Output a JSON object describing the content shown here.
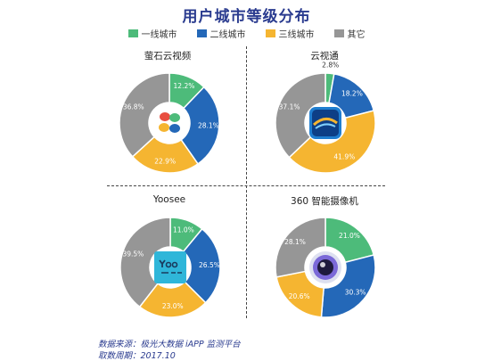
{
  "title": "用户城市等级分布",
  "legend": [
    {
      "label": "一线城市",
      "color": "#4dbb7a"
    },
    {
      "label": "二线城市",
      "color": "#2468b8"
    },
    {
      "label": "三线城市",
      "color": "#f5b531"
    },
    {
      "label": "其它",
      "color": "#969696"
    }
  ],
  "chart_data": [
    {
      "type": "pie",
      "title": "萤石云视频",
      "icon": "ezviz-logo-icon",
      "categories": [
        "一线城市",
        "二线城市",
        "三线城市",
        "其它"
      ],
      "values": [
        12.2,
        28.1,
        22.9,
        36.8
      ],
      "labels": [
        "12.2%",
        "28.1%",
        "22.9%",
        "36.8%"
      ]
    },
    {
      "type": "pie",
      "title": "云视通",
      "icon": "cloudsee-logo-icon",
      "categories": [
        "一线城市",
        "二线城市",
        "三线城市",
        "其它"
      ],
      "values": [
        2.8,
        18.2,
        41.9,
        37.1
      ],
      "labels": [
        "2.8%",
        "18.2%",
        "41.9%",
        "37.1%"
      ]
    },
    {
      "type": "pie",
      "title": "Yoosee",
      "icon": "yoosee-logo-icon",
      "categories": [
        "一线城市",
        "二线城市",
        "三线城市",
        "其它"
      ],
      "values": [
        11.0,
        26.5,
        23.0,
        39.5
      ],
      "labels": [
        "11.0%",
        "26.5%",
        "23.0%",
        "39.5%"
      ]
    },
    {
      "type": "pie",
      "title": "360 智能摄像机",
      "icon": "camera-lens-icon",
      "categories": [
        "一线城市",
        "二线城市",
        "三线城市",
        "其它"
      ],
      "values": [
        21.0,
        30.3,
        20.6,
        28.1
      ],
      "labels": [
        "21.0%",
        "30.3%",
        "20.6%",
        "28.1%"
      ]
    }
  ],
  "footer": {
    "source": "数据来源：极光大数据 iAPP 监测平台",
    "period": "取数周期：2017.10"
  }
}
